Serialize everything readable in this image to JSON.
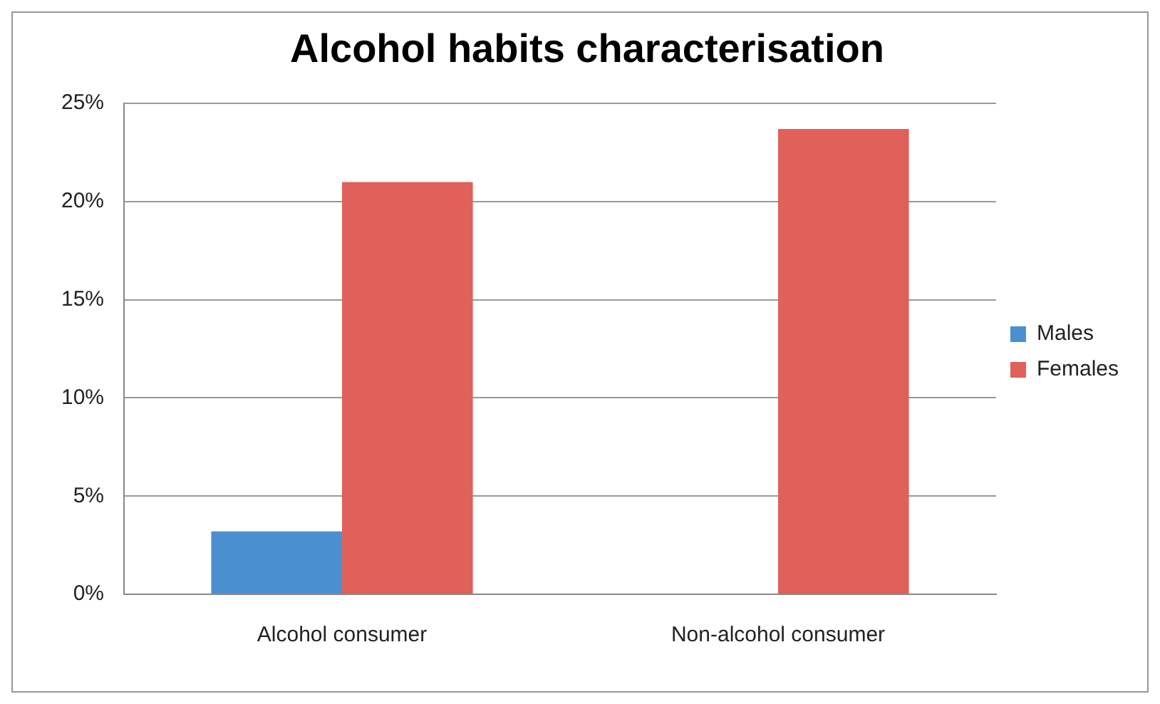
{
  "chart_data": {
    "type": "bar",
    "title": "Alcohol habits characterisation",
    "categories": [
      "Alcohol consumer",
      "Non-alcohol consumer"
    ],
    "series": [
      {
        "name": "Males",
        "color": "#4a90d0",
        "values": [
          3.2,
          0
        ]
      },
      {
        "name": "Females",
        "color": "#e0605a",
        "values": [
          21,
          23.7
        ]
      }
    ],
    "ylim": [
      0,
      25
    ],
    "yticks": [
      {
        "value": 0,
        "label": "0%"
      },
      {
        "value": 5,
        "label": "5%"
      },
      {
        "value": 10,
        "label": "10%"
      },
      {
        "value": 15,
        "label": "15%"
      },
      {
        "value": 20,
        "label": "20%"
      },
      {
        "value": 25,
        "label": "25%"
      }
    ],
    "grid": "y",
    "legend": "right"
  }
}
